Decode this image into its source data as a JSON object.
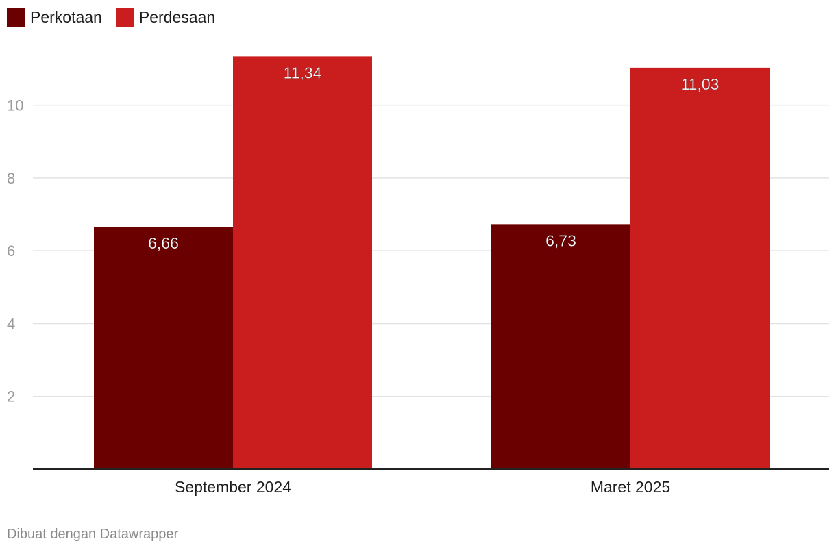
{
  "footer": {
    "credit": "Dibuat dengan Datawrapper"
  },
  "chart_data": {
    "type": "bar",
    "categories": [
      "September 2024",
      "Maret 2025"
    ],
    "series": [
      {
        "name": "Perkotaan",
        "values": [
          6.66,
          6.73
        ],
        "labels": [
          "6,66",
          "6,73"
        ],
        "color": "#6b0000"
      },
      {
        "name": "Perdesaan",
        "values": [
          11.34,
          11.03
        ],
        "labels": [
          "11,34",
          "11,03"
        ],
        "color": "#c91d1e"
      }
    ],
    "ylim": [
      0,
      12.1
    ],
    "yticks": [
      2,
      4,
      6,
      8,
      10
    ],
    "ytick_labels": [
      "2",
      "4",
      "6",
      "8",
      "10"
    ],
    "grid": true,
    "legend": "top-left",
    "xlabel": "",
    "ylabel": "",
    "title": ""
  }
}
